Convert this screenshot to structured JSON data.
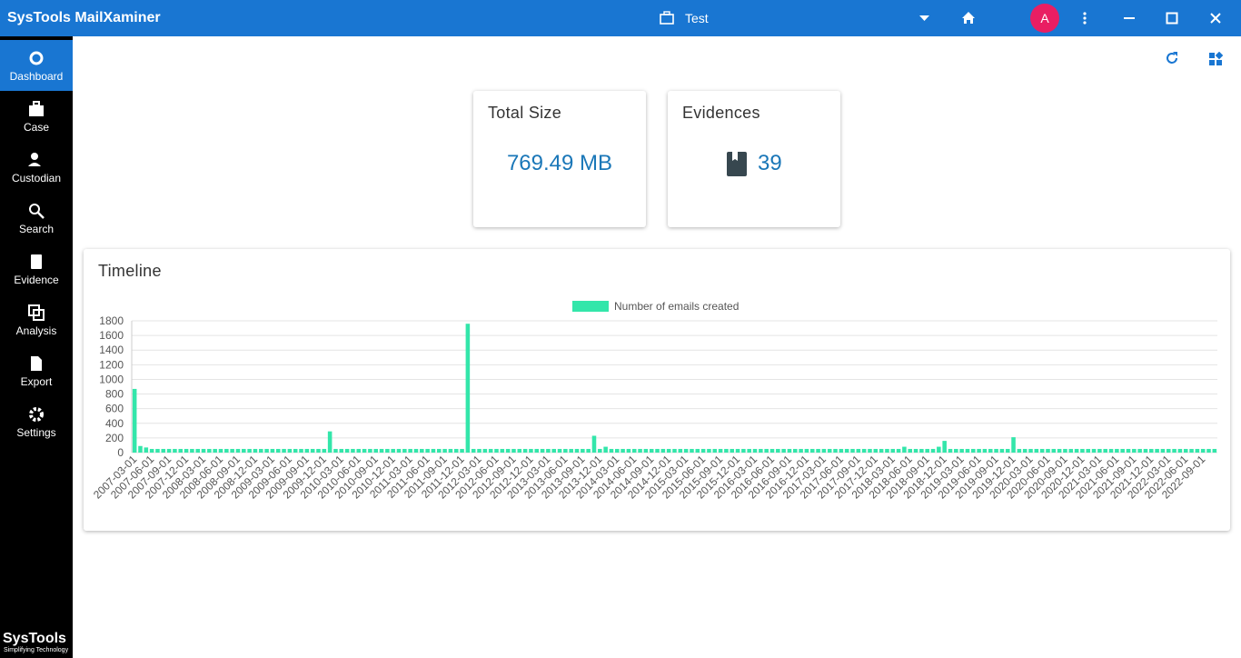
{
  "app": {
    "title": "SysTools MailXaminer",
    "case": "Test",
    "avatar": "A"
  },
  "sidebar": [
    {
      "label": "Dashboard"
    },
    {
      "label": "Case"
    },
    {
      "label": "Custodian"
    },
    {
      "label": "Search"
    },
    {
      "label": "Evidence"
    },
    {
      "label": "Analysis"
    },
    {
      "label": "Export"
    },
    {
      "label": "Settings"
    }
  ],
  "logo": {
    "name": "SysTools",
    "tagline": "Simplifying Technology"
  },
  "cards": [
    {
      "title": "Total Size",
      "value": "769.49 MB"
    },
    {
      "title": "Evidences",
      "value": "39"
    }
  ],
  "timeline": {
    "title": "Timeline"
  },
  "chart_data": {
    "type": "bar",
    "grid": true,
    "categories": [
      "2007-03-01",
      null,
      null,
      "2007-06-01",
      null,
      null,
      "2007-09-01",
      null,
      null,
      "2007-12-01",
      null,
      null,
      "2008-03-01",
      null,
      null,
      "2008-06-01",
      null,
      null,
      "2008-09-01",
      null,
      null,
      "2008-12-01",
      null,
      null,
      "2009-03-01",
      null,
      null,
      "2009-06-01",
      null,
      null,
      "2009-09-01",
      null,
      null,
      "2009-12-01",
      null,
      null,
      "2010-03-01",
      null,
      null,
      "2010-06-01",
      null,
      null,
      "2010-09-01",
      null,
      null,
      "2010-12-01",
      null,
      null,
      "2011-03-01",
      null,
      null,
      "2011-06-01",
      null,
      null,
      "2011-09-01",
      null,
      null,
      "2011-12-01",
      null,
      null,
      "2012-03-01",
      null,
      null,
      "2012-06-01",
      null,
      null,
      "2012-09-01",
      null,
      null,
      "2012-12-01",
      null,
      null,
      "2013-03-01",
      null,
      null,
      "2013-06-01",
      null,
      null,
      "2013-09-01",
      null,
      null,
      "2013-12-01",
      null,
      null,
      "2014-03-01",
      null,
      null,
      "2014-06-01",
      null,
      null,
      "2014-09-01",
      null,
      null,
      "2014-12-01",
      null,
      null,
      "2015-03-01",
      null,
      null,
      "2015-06-01",
      null,
      null,
      "2015-09-01",
      null,
      null,
      "2015-12-01",
      null,
      null,
      "2016-03-01",
      null,
      null,
      "2016-06-01",
      null,
      null,
      "2016-09-01",
      null,
      null,
      "2016-12-01",
      null,
      null,
      "2017-03-01",
      null,
      null,
      "2017-06-01",
      null,
      null,
      "2017-09-01",
      null,
      null,
      "2017-12-01",
      null,
      null,
      "2018-03-01",
      null,
      null,
      "2018-06-01",
      null,
      null,
      "2018-09-01",
      null,
      null,
      "2018-12-01",
      null,
      null,
      "2019-03-01",
      null,
      null,
      "2019-06-01",
      null,
      null,
      "2019-09-01",
      null,
      null,
      "2019-12-01",
      null,
      null,
      "2020-03-01",
      null,
      null,
      "2020-06-01",
      null,
      null,
      "2020-09-01",
      null,
      null,
      "2020-12-01",
      null,
      null,
      "2021-03-01",
      null,
      null,
      "2021-06-01",
      null,
      null,
      "2021-09-01",
      null,
      null,
      "2021-12-01",
      null,
      null,
      "2022-03-01",
      null,
      null,
      "2022-06-01",
      null,
      null,
      "2022-09-01",
      null,
      null
    ],
    "series": [
      {
        "name": "Number of emails created",
        "color": "#33e6aa",
        "values": [
          870,
          90,
          70,
          50,
          50,
          50,
          50,
          50,
          50,
          50,
          50,
          50,
          50,
          50,
          50,
          50,
          50,
          50,
          50,
          50,
          50,
          50,
          50,
          50,
          50,
          50,
          50,
          50,
          50,
          50,
          50,
          50,
          50,
          50,
          290,
          50,
          50,
          50,
          50,
          50,
          50,
          50,
          50,
          50,
          50,
          50,
          50,
          50,
          50,
          50,
          50,
          50,
          50,
          50,
          50,
          50,
          50,
          50,
          1760,
          50,
          50,
          50,
          50,
          50,
          50,
          50,
          50,
          50,
          50,
          50,
          50,
          50,
          50,
          50,
          50,
          50,
          50,
          50,
          50,
          50,
          230,
          50,
          80,
          50,
          50,
          50,
          50,
          50,
          50,
          50,
          50,
          50,
          50,
          50,
          50,
          50,
          50,
          50,
          50,
          50,
          50,
          50,
          50,
          50,
          50,
          50,
          50,
          50,
          50,
          50,
          50,
          50,
          50,
          50,
          50,
          50,
          50,
          50,
          50,
          50,
          50,
          50,
          50,
          50,
          50,
          50,
          50,
          50,
          50,
          50,
          50,
          50,
          50,
          50,
          80,
          50,
          50,
          50,
          50,
          50,
          80,
          160,
          50,
          50,
          50,
          50,
          50,
          50,
          50,
          50,
          50,
          50,
          50,
          210,
          50,
          50,
          50,
          50,
          50,
          50,
          50,
          50,
          50,
          50,
          50,
          50,
          50,
          50,
          50,
          50,
          50,
          50,
          50,
          50,
          50,
          50,
          50,
          50,
          50,
          50,
          50,
          50,
          50,
          50,
          50,
          50,
          50,
          50,
          50
        ]
      }
    ],
    "ylim": [
      0,
      1800
    ],
    "yticks": [
      0,
      200,
      400,
      600,
      800,
      1000,
      1200,
      1400,
      1600,
      1800
    ]
  }
}
